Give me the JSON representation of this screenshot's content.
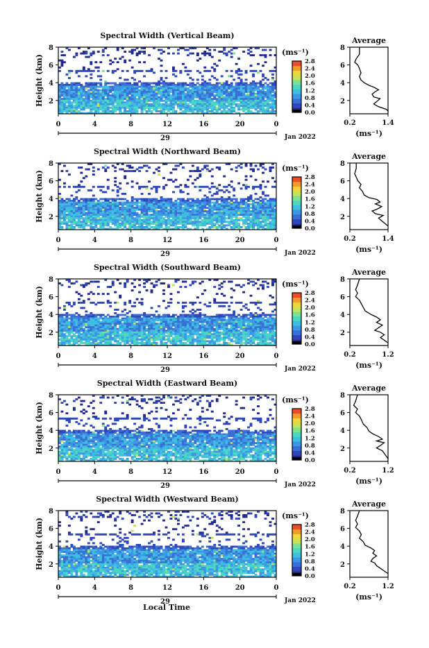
{
  "chart_data": [
    {
      "type": "heatmap",
      "title": "Spectral Width (Vertical Beam)",
      "ylabel": "Height (km)",
      "y_ticks": [
        "2",
        "4",
        "6",
        "8"
      ],
      "ylim": [
        0.5,
        8
      ],
      "x_ticks": [
        "0",
        "4",
        "8",
        "12",
        "16",
        "20",
        "0"
      ],
      "xlim": [
        0,
        24
      ],
      "date_day": "29",
      "date_label": "Jan 2022",
      "colorbar_unit": "(ms⁻¹)",
      "colorbar_ticks": [
        "0.0",
        "0.4",
        "0.8",
        "1.2",
        "1.6",
        "2.0",
        "2.4",
        "2.8"
      ],
      "average": {
        "title": "Average",
        "xlabel": "(ms⁻¹)",
        "x_ticks": [
          "0.2",
          "1.4"
        ],
        "xlim": [
          0.2,
          1.4
        ],
        "y_ticks": [
          "2",
          "4",
          "6",
          "8"
        ],
        "profile": [
          [
            0.5,
            8
          ],
          [
            0.5,
            7.2
          ],
          [
            0.4,
            6.7
          ],
          [
            0.35,
            6.3
          ],
          [
            0.45,
            6.0
          ],
          [
            0.5,
            5.6
          ],
          [
            0.55,
            5.1
          ],
          [
            0.5,
            4.7
          ],
          [
            0.55,
            4.3
          ],
          [
            0.65,
            4.0
          ],
          [
            0.8,
            3.7
          ],
          [
            0.95,
            3.5
          ],
          [
            1.1,
            3.2
          ],
          [
            1.0,
            3.0
          ],
          [
            0.9,
            2.7
          ],
          [
            0.95,
            2.4
          ],
          [
            1.15,
            2.2
          ],
          [
            1.05,
            1.9
          ],
          [
            0.95,
            1.6
          ],
          [
            1.1,
            1.3
          ],
          [
            1.35,
            1.0
          ],
          [
            1.4,
            0.8
          ]
        ]
      }
    },
    {
      "type": "heatmap",
      "title": "Spectral Width (Northward Beam)",
      "ylabel": "Height (km)",
      "y_ticks": [
        "2",
        "4",
        "6",
        "8"
      ],
      "ylim": [
        0.5,
        8
      ],
      "x_ticks": [
        "0",
        "4",
        "8",
        "12",
        "16",
        "20",
        "0"
      ],
      "xlim": [
        0,
        24
      ],
      "date_day": "29",
      "date_label": "Jan 2022",
      "colorbar_unit": "(ms⁻¹)",
      "colorbar_ticks": [
        "0.0",
        "0.4",
        "0.8",
        "1.2",
        "1.6",
        "2.0",
        "2.4",
        "2.8"
      ],
      "average": {
        "title": "Average",
        "xlabel": "(ms⁻¹)",
        "x_ticks": [
          "0.2",
          "1.4"
        ],
        "xlim": [
          0.2,
          1.4
        ],
        "y_ticks": [
          "2",
          "4",
          "6",
          "8"
        ],
        "profile": [
          [
            0.4,
            8
          ],
          [
            0.4,
            7.4
          ],
          [
            0.35,
            6.8
          ],
          [
            0.4,
            6.4
          ],
          [
            0.45,
            6.0
          ],
          [
            0.55,
            5.6
          ],
          [
            0.5,
            5.2
          ],
          [
            0.6,
            4.8
          ],
          [
            0.65,
            4.4
          ],
          [
            0.8,
            4.1
          ],
          [
            1.05,
            3.9
          ],
          [
            1.15,
            3.6
          ],
          [
            1.0,
            3.4
          ],
          [
            1.2,
            3.1
          ],
          [
            1.05,
            2.8
          ],
          [
            0.9,
            2.6
          ],
          [
            1.0,
            2.3
          ],
          [
            1.25,
            2.1
          ],
          [
            1.1,
            1.8
          ],
          [
            1.2,
            1.5
          ],
          [
            1.3,
            1.2
          ],
          [
            1.4,
            0.9
          ]
        ]
      }
    },
    {
      "type": "heatmap",
      "title": "Spectral Width (Southward Beam)",
      "ylabel": "Height (km)",
      "y_ticks": [
        "2",
        "4",
        "6",
        "8"
      ],
      "ylim": [
        0.5,
        8
      ],
      "x_ticks": [
        "0",
        "4",
        "8",
        "12",
        "16",
        "20",
        "0"
      ],
      "xlim": [
        0,
        24
      ],
      "date_day": "29",
      "date_label": "Jan 2022",
      "colorbar_unit": "(ms⁻¹)",
      "colorbar_ticks": [
        "0.0",
        "0.4",
        "0.8",
        "1.2",
        "1.6",
        "2.0",
        "2.4",
        "2.8"
      ],
      "average": {
        "title": "Average",
        "xlabel": "(ms⁻¹)",
        "x_ticks": [
          "0.2",
          "1.2"
        ],
        "xlim": [
          0.2,
          1.2
        ],
        "y_ticks": [
          "2",
          "4",
          "6",
          "8"
        ],
        "profile": [
          [
            0.45,
            8
          ],
          [
            0.4,
            7.3
          ],
          [
            0.35,
            6.8
          ],
          [
            0.4,
            6.4
          ],
          [
            0.35,
            6.0
          ],
          [
            0.45,
            5.6
          ],
          [
            0.5,
            5.2
          ],
          [
            0.55,
            4.8
          ],
          [
            0.6,
            4.4
          ],
          [
            0.75,
            4.0
          ],
          [
            0.9,
            3.7
          ],
          [
            1.0,
            3.4
          ],
          [
            0.9,
            3.1
          ],
          [
            1.05,
            2.8
          ],
          [
            0.95,
            2.5
          ],
          [
            0.85,
            2.2
          ],
          [
            1.0,
            2.0
          ],
          [
            1.1,
            1.7
          ],
          [
            1.0,
            1.4
          ],
          [
            1.1,
            1.1
          ],
          [
            1.2,
            0.8
          ]
        ]
      }
    },
    {
      "type": "heatmap",
      "title": "Spectral Width (Eastward Beam)",
      "ylabel": "Height (km)",
      "y_ticks": [
        "2",
        "4",
        "6",
        "8"
      ],
      "ylim": [
        0.5,
        8
      ],
      "x_ticks": [
        "0",
        "4",
        "8",
        "12",
        "16",
        "20",
        "0"
      ],
      "xlim": [
        0,
        24
      ],
      "date_day": "29",
      "date_label": "Jan 2022",
      "colorbar_unit": "(ms⁻¹)",
      "colorbar_ticks": [
        "0.0",
        "0.4",
        "0.8",
        "1.2",
        "1.6",
        "2.0",
        "2.4",
        "2.8"
      ],
      "average": {
        "title": "Average",
        "xlabel": "(ms⁻¹)",
        "x_ticks": [
          "0.2",
          "1.2"
        ],
        "xlim": [
          0.2,
          1.2
        ],
        "y_ticks": [
          "2",
          "4",
          "6",
          "8"
        ],
        "profile": [
          [
            0.4,
            8
          ],
          [
            0.35,
            7.3
          ],
          [
            0.3,
            6.8
          ],
          [
            0.4,
            6.4
          ],
          [
            0.35,
            6.0
          ],
          [
            0.45,
            5.6
          ],
          [
            0.5,
            5.2
          ],
          [
            0.55,
            4.7
          ],
          [
            0.65,
            4.3
          ],
          [
            0.7,
            3.9
          ],
          [
            0.8,
            3.6
          ],
          [
            0.95,
            3.3
          ],
          [
            1.05,
            3.0
          ],
          [
            0.9,
            2.8
          ],
          [
            1.1,
            2.6
          ],
          [
            1.0,
            2.3
          ],
          [
            0.9,
            2.0
          ],
          [
            1.05,
            1.7
          ],
          [
            1.1,
            1.4
          ],
          [
            1.15,
            1.1
          ],
          [
            1.2,
            0.8
          ]
        ]
      }
    },
    {
      "type": "heatmap",
      "title": "Spectral Width (Westward Beam)",
      "ylabel": "Height (km)",
      "y_ticks": [
        "2",
        "4",
        "6",
        "8"
      ],
      "ylim": [
        0.5,
        8
      ],
      "x_ticks": [
        "0",
        "4",
        "8",
        "12",
        "16",
        "20",
        "0"
      ],
      "xlim": [
        0,
        24
      ],
      "date_day": "29",
      "date_label": "Jan 2022",
      "colorbar_unit": "(ms⁻¹)",
      "colorbar_ticks": [
        "0.0",
        "0.4",
        "0.8",
        "1.2",
        "1.6",
        "2.0",
        "2.4",
        "2.8"
      ],
      "average": {
        "title": "Average",
        "xlabel": "(ms⁻¹)",
        "x_ticks": [
          "0.2",
          "1.2"
        ],
        "xlim": [
          0.2,
          1.2
        ],
        "y_ticks": [
          "2",
          "4",
          "6",
          "8"
        ],
        "profile": [
          [
            0.45,
            8
          ],
          [
            0.4,
            7.4
          ],
          [
            0.35,
            6.9
          ],
          [
            0.4,
            6.5
          ],
          [
            0.35,
            6.1
          ],
          [
            0.45,
            5.7
          ],
          [
            0.5,
            5.3
          ],
          [
            0.45,
            4.9
          ],
          [
            0.55,
            4.5
          ],
          [
            0.6,
            4.1
          ],
          [
            0.75,
            3.8
          ],
          [
            0.85,
            3.5
          ],
          [
            0.8,
            3.2
          ],
          [
            0.9,
            2.9
          ],
          [
            0.8,
            2.6
          ],
          [
            0.75,
            2.3
          ],
          [
            0.85,
            2.1
          ],
          [
            0.9,
            1.8
          ],
          [
            1.0,
            1.5
          ],
          [
            1.1,
            1.2
          ],
          [
            1.2,
            0.9
          ]
        ]
      }
    }
  ],
  "x_axis_label": "Local Time",
  "colormap": [
    "#232a8f",
    "#2f47b8",
    "#3a6fd6",
    "#3e97e3",
    "#3fbfe0",
    "#4dd6c0",
    "#7fe08f",
    "#c2e35a",
    "#f0d63a",
    "#f39a2b",
    "#e9502a"
  ]
}
